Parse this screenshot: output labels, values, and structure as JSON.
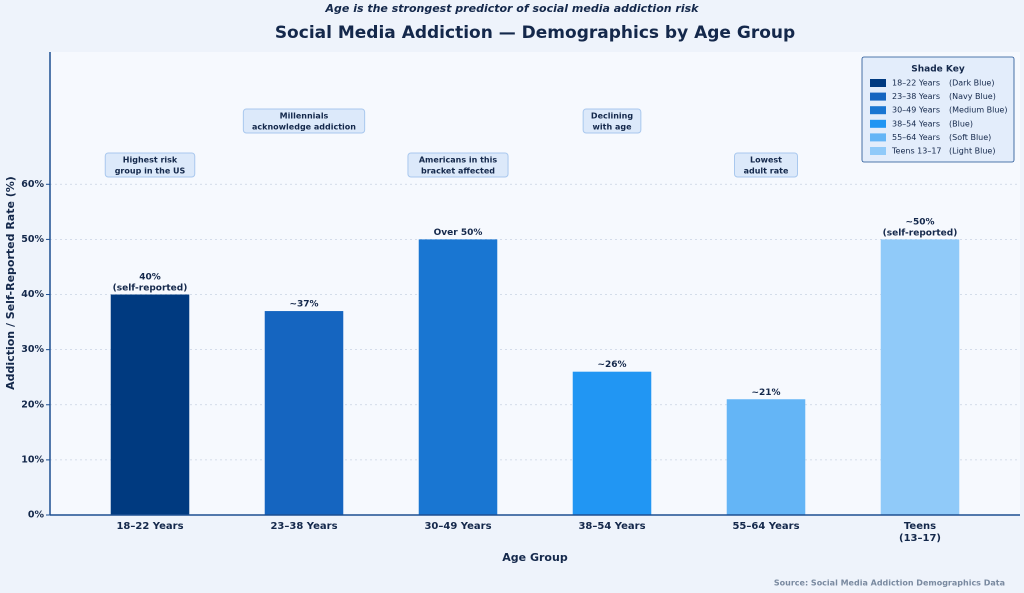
{
  "chart_data": {
    "type": "bar",
    "subtitle": "Age is the strongest predictor of social media addiction risk",
    "title": "Social Media Addiction — Demographics by Age Group",
    "x_label": "Age Group",
    "y_label": "Addiction / Self-Reported Rate (%)",
    "categories": [
      "18–22 Years",
      "23–38 Years",
      "30–49 Years",
      "38–54 Years",
      "55–64 Years",
      "Teens\n(13–17)"
    ],
    "values": [
      40,
      37,
      50,
      26,
      21,
      50
    ],
    "value_labels": [
      "40%\n(self-reported)",
      "~37%",
      "Over 50%",
      "~26%",
      "~21%",
      "~50%\n(self-reported)"
    ],
    "colors": [
      "#003a80",
      "#1565c0",
      "#1976d2",
      "#2196f3",
      "#64b5f6",
      "#90caf9"
    ],
    "annotations": [
      "Highest risk\ngroup in the US",
      "Millennials\nacknowledge addiction",
      "Americans in this\nbracket affected",
      "Declining\nwith age",
      "Lowest\nadult rate",
      null
    ],
    "ylim": [
      0,
      84
    ],
    "yticks": [
      {
        "value": 0,
        "label": "0%"
      },
      {
        "value": 10,
        "label": "10%"
      },
      {
        "value": 20,
        "label": "20%"
      },
      {
        "value": 30,
        "label": "30%"
      },
      {
        "value": 40,
        "label": "40%"
      },
      {
        "value": 50,
        "label": "50%"
      },
      {
        "value": 60,
        "label": "60%"
      }
    ],
    "grid": true,
    "legend": {
      "title": "Shade Key",
      "entries": [
        {
          "label": "18–22 Years",
          "shade": "(Dark Blue)"
        },
        {
          "label": "23–38 Years",
          "shade": "(Navy Blue)"
        },
        {
          "label": "30–49 Years",
          "shade": "(Medium Blue)"
        },
        {
          "label": "38–54 Years",
          "shade": "(Blue)"
        },
        {
          "label": "55–64 Years",
          "shade": "(Soft Blue)"
        },
        {
          "label": "Teens 13–17",
          "shade": "(Light Blue)"
        }
      ]
    },
    "source": "Source: Social Media Addiction Demographics Data"
  }
}
